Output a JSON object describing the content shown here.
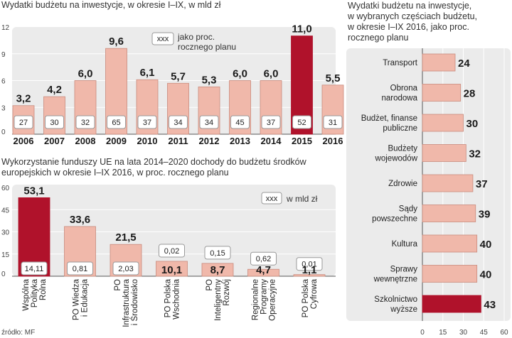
{
  "colors": {
    "bar": "#f0b8aa",
    "bar_stroke": "#c98b7d",
    "highlight": "#b0122b",
    "panel": "#ebebeb",
    "box_stroke": "#999999"
  },
  "source": "źródło: MF",
  "chart_data": [
    {
      "type": "bar",
      "title": "Wydatki budżetu na inwestycje, w okresie I–IX, w mld zł",
      "categories": [
        "2006",
        "2007",
        "2008",
        "2009",
        "2010",
        "2011",
        "2012",
        "2013",
        "2014",
        "2015",
        "2016"
      ],
      "values": [
        3.2,
        4.2,
        6.0,
        9.6,
        6.1,
        5.7,
        5.3,
        6.0,
        6.0,
        11.0,
        5.5
      ],
      "value_labels": [
        "3,2",
        "4,2",
        "6,0",
        "9,6",
        "6,1",
        "5,7",
        "5,3",
        "6,0",
        "6,0",
        "11,0",
        "5,5"
      ],
      "plan_percent": [
        "27",
        "30",
        "32",
        "65",
        "37",
        "34",
        "34",
        "45",
        "37",
        "52",
        "31"
      ],
      "highlight_index": 9,
      "ylim": [
        0,
        12
      ],
      "yticks": [
        "0",
        "3",
        "6",
        "9",
        "12"
      ],
      "legend_box": "xxx",
      "legend_text": [
        "jako proc.",
        "rocznego planu"
      ]
    },
    {
      "type": "bar",
      "title": [
        "Wykorzystanie funduszy UE na lata 2014–2020 dochody do budżetu środków",
        "europejskich w okresie I–IX 2016, w proc. rocznego planu"
      ],
      "categories": [
        [
          "Wspólna",
          "Polityka",
          "Rolna"
        ],
        [
          "PO Wiedza",
          "i Edukacja"
        ],
        [
          "PO",
          "Infrastruktura",
          "i Środowisko"
        ],
        [
          "PO Polska",
          "Wschodnia"
        ],
        [
          "PO",
          "Inteligentny",
          "Rozwój"
        ],
        [
          "Regionalne",
          "Programy",
          "Operacyjne"
        ],
        [
          "PO Polska",
          "Cyfrowa"
        ]
      ],
      "values": [
        53.1,
        33.6,
        21.5,
        10.1,
        8.7,
        4.7,
        1.1
      ],
      "value_labels": [
        "53,1",
        "33,6",
        "21,5",
        "10,1",
        "8,7",
        "4,7",
        "1,1"
      ],
      "amount_bln": [
        "14,11",
        "0,81",
        "2,03",
        "0,02",
        "0,15",
        "0,62",
        "0,01"
      ],
      "highlight_index": 0,
      "ylim": [
        0,
        60
      ],
      "yticks": [
        "0",
        "15",
        "30",
        "45",
        "60"
      ],
      "legend_box": "xxx",
      "legend_text": "w mld zł"
    },
    {
      "type": "barh",
      "title": [
        "Wydatki budżetu na inwestycje,",
        "w wybranych częściach budżetu,",
        "w okresie I–IX 2016, jako proc.",
        "rocznego planu"
      ],
      "categories": [
        [
          "Transport"
        ],
        [
          "Obrona",
          "narodowa"
        ],
        [
          "Budżet, finanse",
          "publiczne"
        ],
        [
          "Budżety",
          "wojewodów"
        ],
        [
          "Zdrowie"
        ],
        [
          "Sądy",
          "powszechne"
        ],
        [
          "Kultura"
        ],
        [
          "Sprawy",
          "wewnętrzne"
        ],
        [
          "Szkolnictwo",
          "wyższe"
        ]
      ],
      "values": [
        24,
        28,
        30,
        32,
        37,
        39,
        40,
        40,
        43
      ],
      "value_labels": [
        "24",
        "28",
        "30",
        "32",
        "37",
        "39",
        "40",
        "40",
        "43"
      ],
      "highlight_index": 8,
      "xlim": [
        0,
        60
      ],
      "xticks": [
        "0",
        "15",
        "30",
        "45",
        "60"
      ]
    }
  ]
}
